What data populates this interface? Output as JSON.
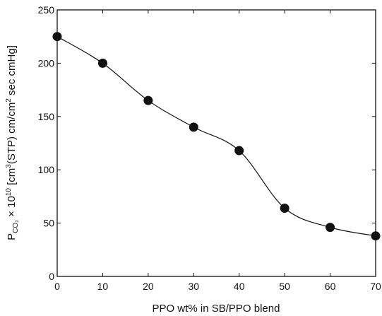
{
  "chart_data": {
    "type": "line",
    "title": "",
    "xlabel": "PPO wt% in SB/PPO blend",
    "ylabel": {
      "main": "P",
      "subscript": "CO₂",
      "times": " × 10",
      "exp": "10",
      "unit_open": " [cm",
      "unit_exp1": "3",
      "unit_mid": "(STP) cm/cm",
      "unit_exp2": "2",
      "unit_close": " sec cmHg]"
    },
    "xlim": [
      0,
      70
    ],
    "ylim": [
      0,
      250
    ],
    "x_ticks": [
      0,
      10,
      20,
      30,
      40,
      50,
      60,
      70
    ],
    "y_ticks": [
      0,
      50,
      100,
      150,
      200,
      250
    ],
    "grid": false,
    "legend": "none",
    "series": [
      {
        "x": [
          0,
          10,
          20,
          30,
          40,
          50,
          60,
          70
        ],
        "y": [
          225,
          200,
          165,
          140,
          118,
          64,
          46,
          38
        ],
        "marker": "filled-circle",
        "color": "#111111",
        "line": "smooth"
      }
    ]
  }
}
